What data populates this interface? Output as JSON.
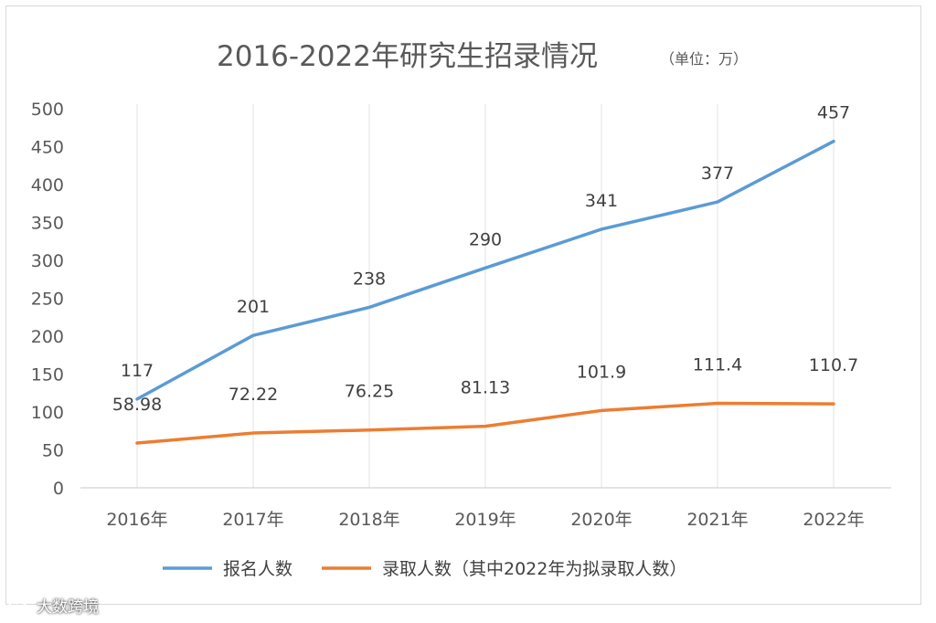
{
  "chart_data": {
    "type": "line",
    "title": "2016-2022年研究生招录情况",
    "title_unit": "（单位：万）",
    "categories": [
      "2016年",
      "2017年",
      "2018年",
      "2019年",
      "2020年",
      "2021年",
      "2022年"
    ],
    "ylim": [
      0,
      500
    ],
    "yticks": [
      0,
      50,
      100,
      150,
      200,
      250,
      300,
      350,
      400,
      450,
      500
    ],
    "grid": "vertical",
    "legend_position": "bottom",
    "series": [
      {
        "name": "报名人数",
        "color": "#5b9bd5",
        "values": [
          117,
          201,
          238,
          290,
          341,
          377,
          457
        ],
        "labels": [
          "117",
          "201",
          "238",
          "290",
          "341",
          "377",
          "457"
        ]
      },
      {
        "name": "录取人数（其中2022年为拟录取人数）",
        "color": "#ed7d31",
        "values": [
          58.98,
          72.22,
          76.25,
          81.13,
          101.9,
          111.4,
          110.7
        ],
        "labels": [
          "58.98",
          "72.22",
          "76.25",
          "81.13",
          "101.9",
          "111.4",
          "110.7"
        ]
      }
    ]
  },
  "watermark": {
    "icon": "weibo-logo-icon",
    "text": "大数跨境"
  }
}
